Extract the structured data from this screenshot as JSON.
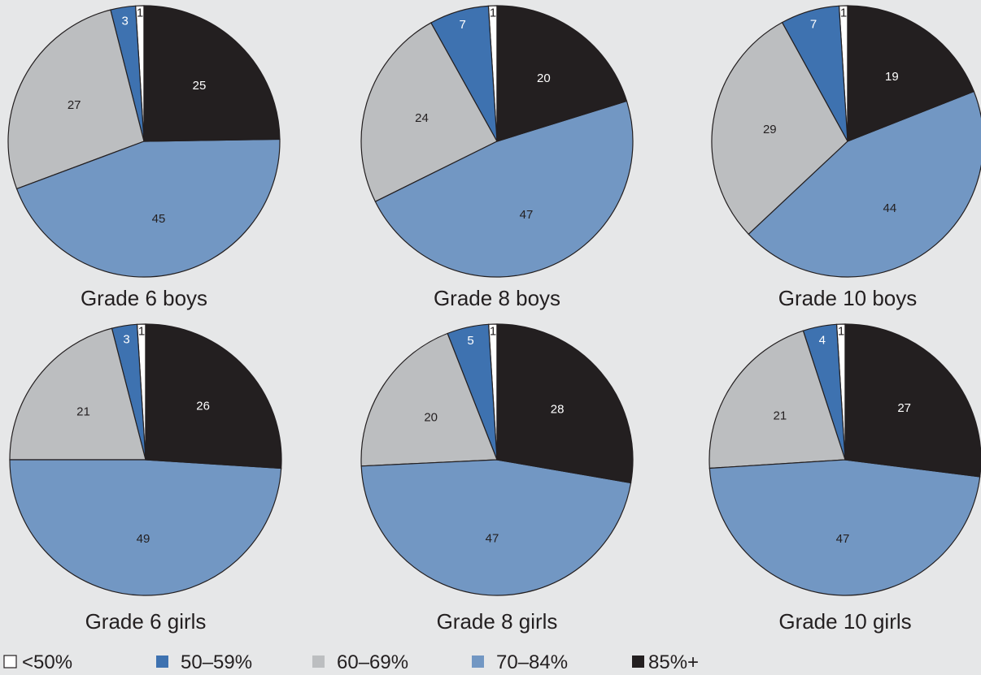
{
  "chart_data": {
    "type": "pie",
    "categories": [
      "<50%",
      "50–59%",
      "60–69%",
      "70–84%",
      "85%+"
    ],
    "colors": [
      "#ffffff",
      "#3e72b0",
      "#bcbec0",
      "#7297c3",
      "#231f20"
    ],
    "label_colors": [
      "#231f20",
      "#ffffff",
      "#231f20",
      "#231f20",
      "#ffffff"
    ],
    "charts": [
      {
        "title": "Grade 6 boys",
        "values": [
          1,
          3,
          27,
          45,
          25
        ]
      },
      {
        "title": "Grade 8 boys",
        "values": [
          1,
          7,
          24,
          47,
          20
        ]
      },
      {
        "title": "Grade 10 boys",
        "values": [
          1,
          7,
          29,
          44,
          19
        ]
      },
      {
        "title": "Grade 6 girls",
        "values": [
          1,
          3,
          21,
          49,
          26
        ]
      },
      {
        "title": "Grade 8 girls",
        "values": [
          1,
          5,
          20,
          47,
          28
        ]
      },
      {
        "title": "Grade 10 girls",
        "values": [
          1,
          4,
          21,
          47,
          27
        ]
      }
    ]
  }
}
